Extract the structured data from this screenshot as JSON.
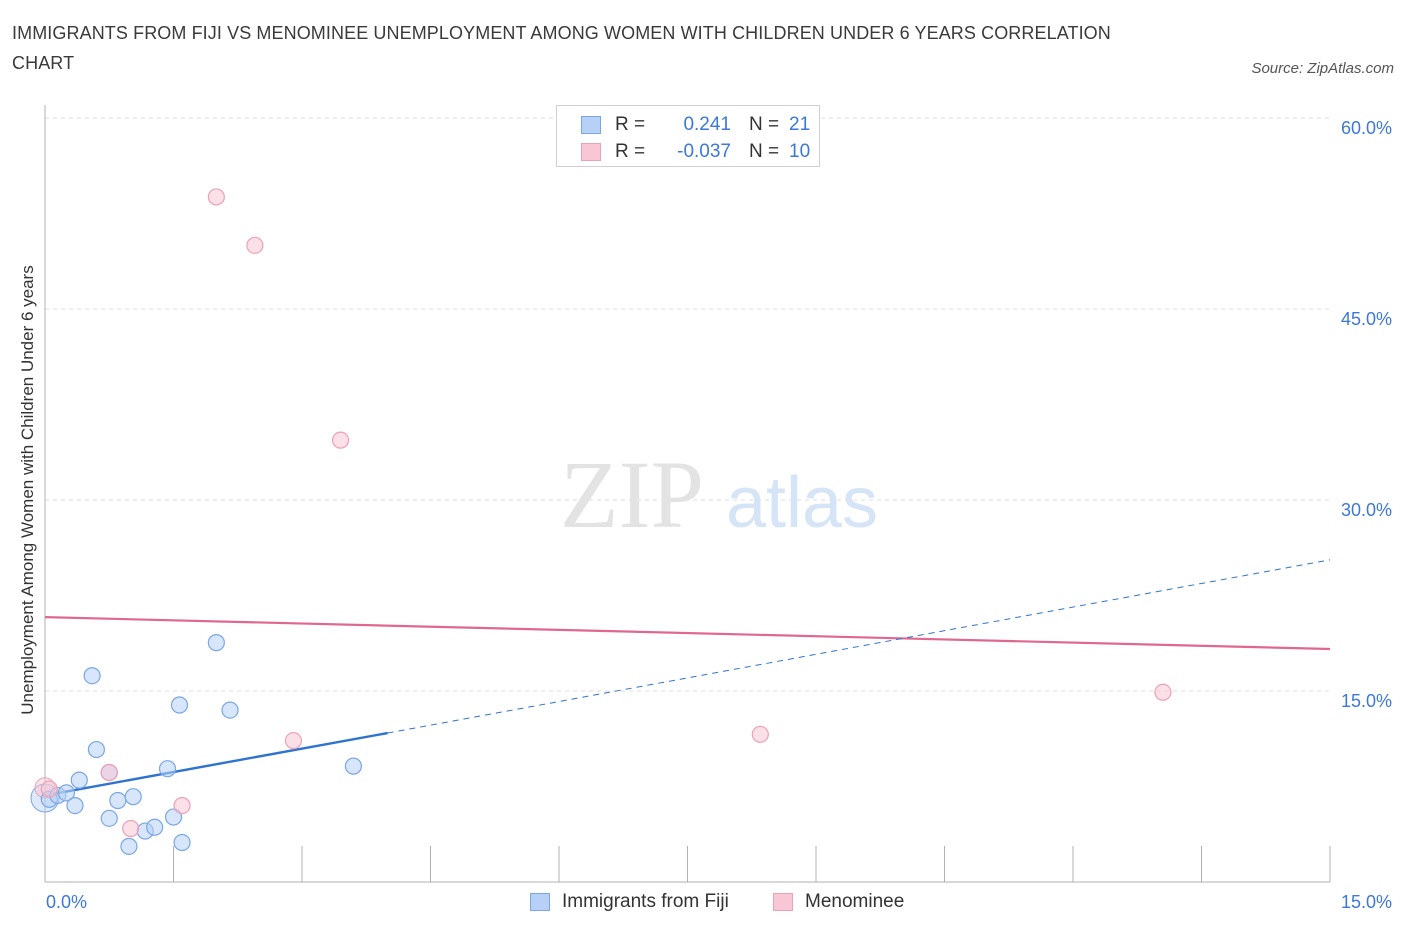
{
  "title": "IMMIGRANTS FROM FIJI VS MENOMINEE UNEMPLOYMENT AMONG WOMEN WITH CHILDREN UNDER 6 YEARS CORRELATION CHART",
  "source": "Source: ZipAtlas.com",
  "watermark": {
    "zip": "ZIP",
    "atlas": "atlas"
  },
  "legend": {
    "r_label": "R =",
    "n_label": "N =",
    "fiji": {
      "r": "0.241",
      "n": "21"
    },
    "menominee": {
      "r": "-0.037",
      "n": "10"
    }
  },
  "colors": {
    "fiji_fill": "#b6d1f5",
    "fiji_stroke": "#7aa6e6",
    "fiji_line": "#2f73d0",
    "men_fill": "#f8c6d4",
    "men_stroke": "#eda0b6",
    "men_line": "#e0678f",
    "axis_text": "#3c78d8",
    "grid": "#dddddd"
  },
  "chart_data": {
    "type": "scatter",
    "title": "IMMIGRANTS FROM FIJI VS MENOMINEE UNEMPLOYMENT AMONG WOMEN WITH CHILDREN UNDER 6 YEARS CORRELATION CHART",
    "xlabel": "",
    "ylabel": "Unemployment Among Women with Children Under 6 years",
    "xlim": [
      0,
      15
    ],
    "ylim": [
      0,
      60
    ],
    "x_tick_labels": [
      "0.0%",
      "15.0%"
    ],
    "y_ticks": [
      15,
      30,
      45,
      60
    ],
    "y_tick_labels": [
      "15.0%",
      "30.0%",
      "45.0%",
      "60.0%"
    ],
    "grid": true,
    "legend_position": "bottom-center",
    "series": [
      {
        "name": "Immigrants from Fiji",
        "points": [
          [
            0.05,
            6.5
          ],
          [
            0.15,
            6.8
          ],
          [
            0.25,
            7.0
          ],
          [
            0.35,
            6.0
          ],
          [
            0.4,
            8.0
          ],
          [
            0.55,
            16.2
          ],
          [
            0.6,
            10.4
          ],
          [
            0.75,
            8.6
          ],
          [
            0.75,
            5.0
          ],
          [
            0.85,
            6.4
          ],
          [
            0.98,
            2.8
          ],
          [
            1.03,
            6.7
          ],
          [
            1.17,
            4.0
          ],
          [
            1.28,
            4.3
          ],
          [
            1.43,
            8.9
          ],
          [
            1.5,
            5.1
          ],
          [
            1.57,
            13.9
          ],
          [
            1.6,
            3.1
          ],
          [
            2.0,
            18.8
          ],
          [
            2.16,
            13.5
          ],
          [
            3.6,
            9.1
          ]
        ],
        "trend": {
          "x": [
            0,
            4.0
          ],
          "y": [
            6.8,
            11.7
          ],
          "dashed_extension_to": [
            15,
            25.3
          ]
        }
      },
      {
        "name": "Menominee",
        "points": [
          [
            0.05,
            7.3
          ],
          [
            0.75,
            8.6
          ],
          [
            1.0,
            4.2
          ],
          [
            1.6,
            6.0
          ],
          [
            2.0,
            53.8
          ],
          [
            2.45,
            50.0
          ],
          [
            2.9,
            11.1
          ],
          [
            3.45,
            34.7
          ],
          [
            8.35,
            11.6
          ],
          [
            13.05,
            14.9
          ]
        ],
        "trend": {
          "x": [
            0,
            15
          ],
          "y": [
            20.8,
            18.3
          ]
        }
      }
    ]
  },
  "bottom_legend": {
    "fiji": "Immigrants from Fiji",
    "menominee": "Menominee"
  }
}
